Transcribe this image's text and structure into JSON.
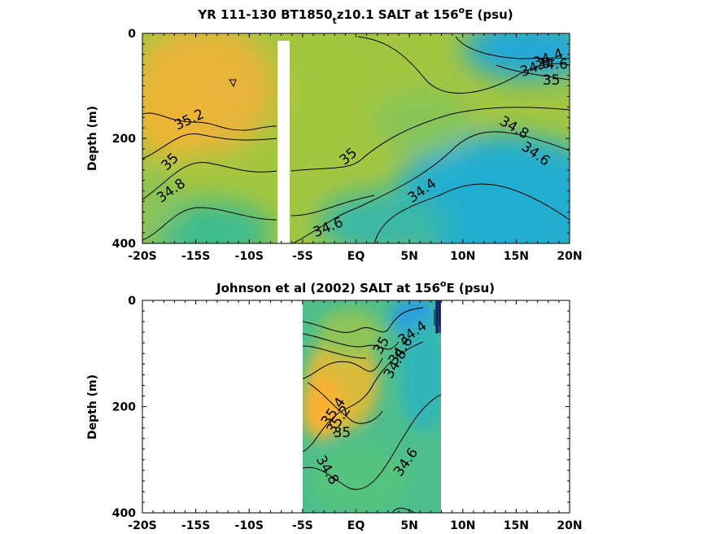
{
  "chart_data": [
    {
      "type": "heatmap",
      "title_parts": [
        "YR 111-130 BT1850",
        "t",
        "z10.1 SALT at 156",
        "o",
        "E (psu)"
      ],
      "ylabel": "Depth (m)",
      "xlim": [
        -20,
        20
      ],
      "ylim": [
        0,
        400
      ],
      "y_reversed": true,
      "x_ticks": [
        -20,
        -15,
        -10,
        -5,
        0,
        5,
        10,
        15,
        20
      ],
      "x_tick_labels": [
        "-20S",
        "-15S",
        "-10S",
        "-5S",
        "EQ",
        "5N",
        "10N",
        "15N",
        "20N"
      ],
      "y_ticks": [
        0,
        200,
        400
      ],
      "y_tick_labels": [
        "0",
        "200",
        "400"
      ],
      "data_x_range": [
        -20,
        20
      ],
      "gap_x_range": [
        -8,
        -7
      ],
      "contour_labels": [
        {
          "text": "35.2",
          "x": -15.6,
          "y": 165,
          "angle": -25
        },
        {
          "text": "35",
          "x": -17.4,
          "y": 245,
          "angle": -45
        },
        {
          "text": "34.8",
          "x": -17.3,
          "y": 300,
          "angle": -35
        },
        {
          "text": "35",
          "x": -0.7,
          "y": 235,
          "angle": -40
        },
        {
          "text": "34.4",
          "x": 6.2,
          "y": 300,
          "angle": -35
        },
        {
          "text": "34.6",
          "x": -2.6,
          "y": 370,
          "angle": -22
        },
        {
          "text": "34.8",
          "x": 14.8,
          "y": 180,
          "angle": 30
        },
        {
          "text": "34.6",
          "x": 16.8,
          "y": 230,
          "angle": 35
        },
        {
          "text": "34.4",
          "x": 18,
          "y": 48,
          "angle": -20
        },
        {
          "text": "34.8",
          "x": 16.8,
          "y": 65,
          "angle": -20
        },
        {
          "text": "35",
          "x": 18.3,
          "y": 90,
          "angle": 0
        },
        {
          "text": "34.6",
          "x": 18.4,
          "y": 60,
          "angle": 0
        }
      ]
    },
    {
      "type": "heatmap",
      "title_parts": [
        "Johnson et al (2002) SALT at 156",
        "o",
        "E (psu)"
      ],
      "ylabel": "Depth (m)",
      "xlim": [
        -20,
        20
      ],
      "ylim": [
        0,
        400
      ],
      "y_reversed": true,
      "x_ticks": [
        -20,
        -15,
        -10,
        -5,
        0,
        5,
        10,
        15,
        20
      ],
      "x_tick_labels": [
        "-20S",
        "-15S",
        "-10S",
        "-5S",
        "EQ",
        "5N",
        "10N",
        "15N",
        "20N"
      ],
      "y_ticks": [
        0,
        200,
        400
      ],
      "y_tick_labels": [
        "0",
        "200",
        "400"
      ],
      "data_x_range": [
        -5,
        8
      ],
      "contour_labels": [
        {
          "text": "34.4",
          "x": 5.3,
          "y": 62,
          "angle": -35
        },
        {
          "text": "34.6",
          "x": 4.2,
          "y": 95,
          "angle": -55
        },
        {
          "text": "34.8",
          "x": 3.7,
          "y": 120,
          "angle": -60
        },
        {
          "text": "35",
          "x": 2.4,
          "y": 85,
          "angle": -60
        },
        {
          "text": "35.4",
          "x": -2.1,
          "y": 210,
          "angle": -55
        },
        {
          "text": "35.2",
          "x": -1.6,
          "y": 225,
          "angle": -55
        },
        {
          "text": "35",
          "x": -1.3,
          "y": 250,
          "angle": 0
        },
        {
          "text": "34.6",
          "x": 4.7,
          "y": 305,
          "angle": -55
        },
        {
          "text": "34.8",
          "x": -2.7,
          "y": 320,
          "angle": 60
        }
      ]
    }
  ]
}
